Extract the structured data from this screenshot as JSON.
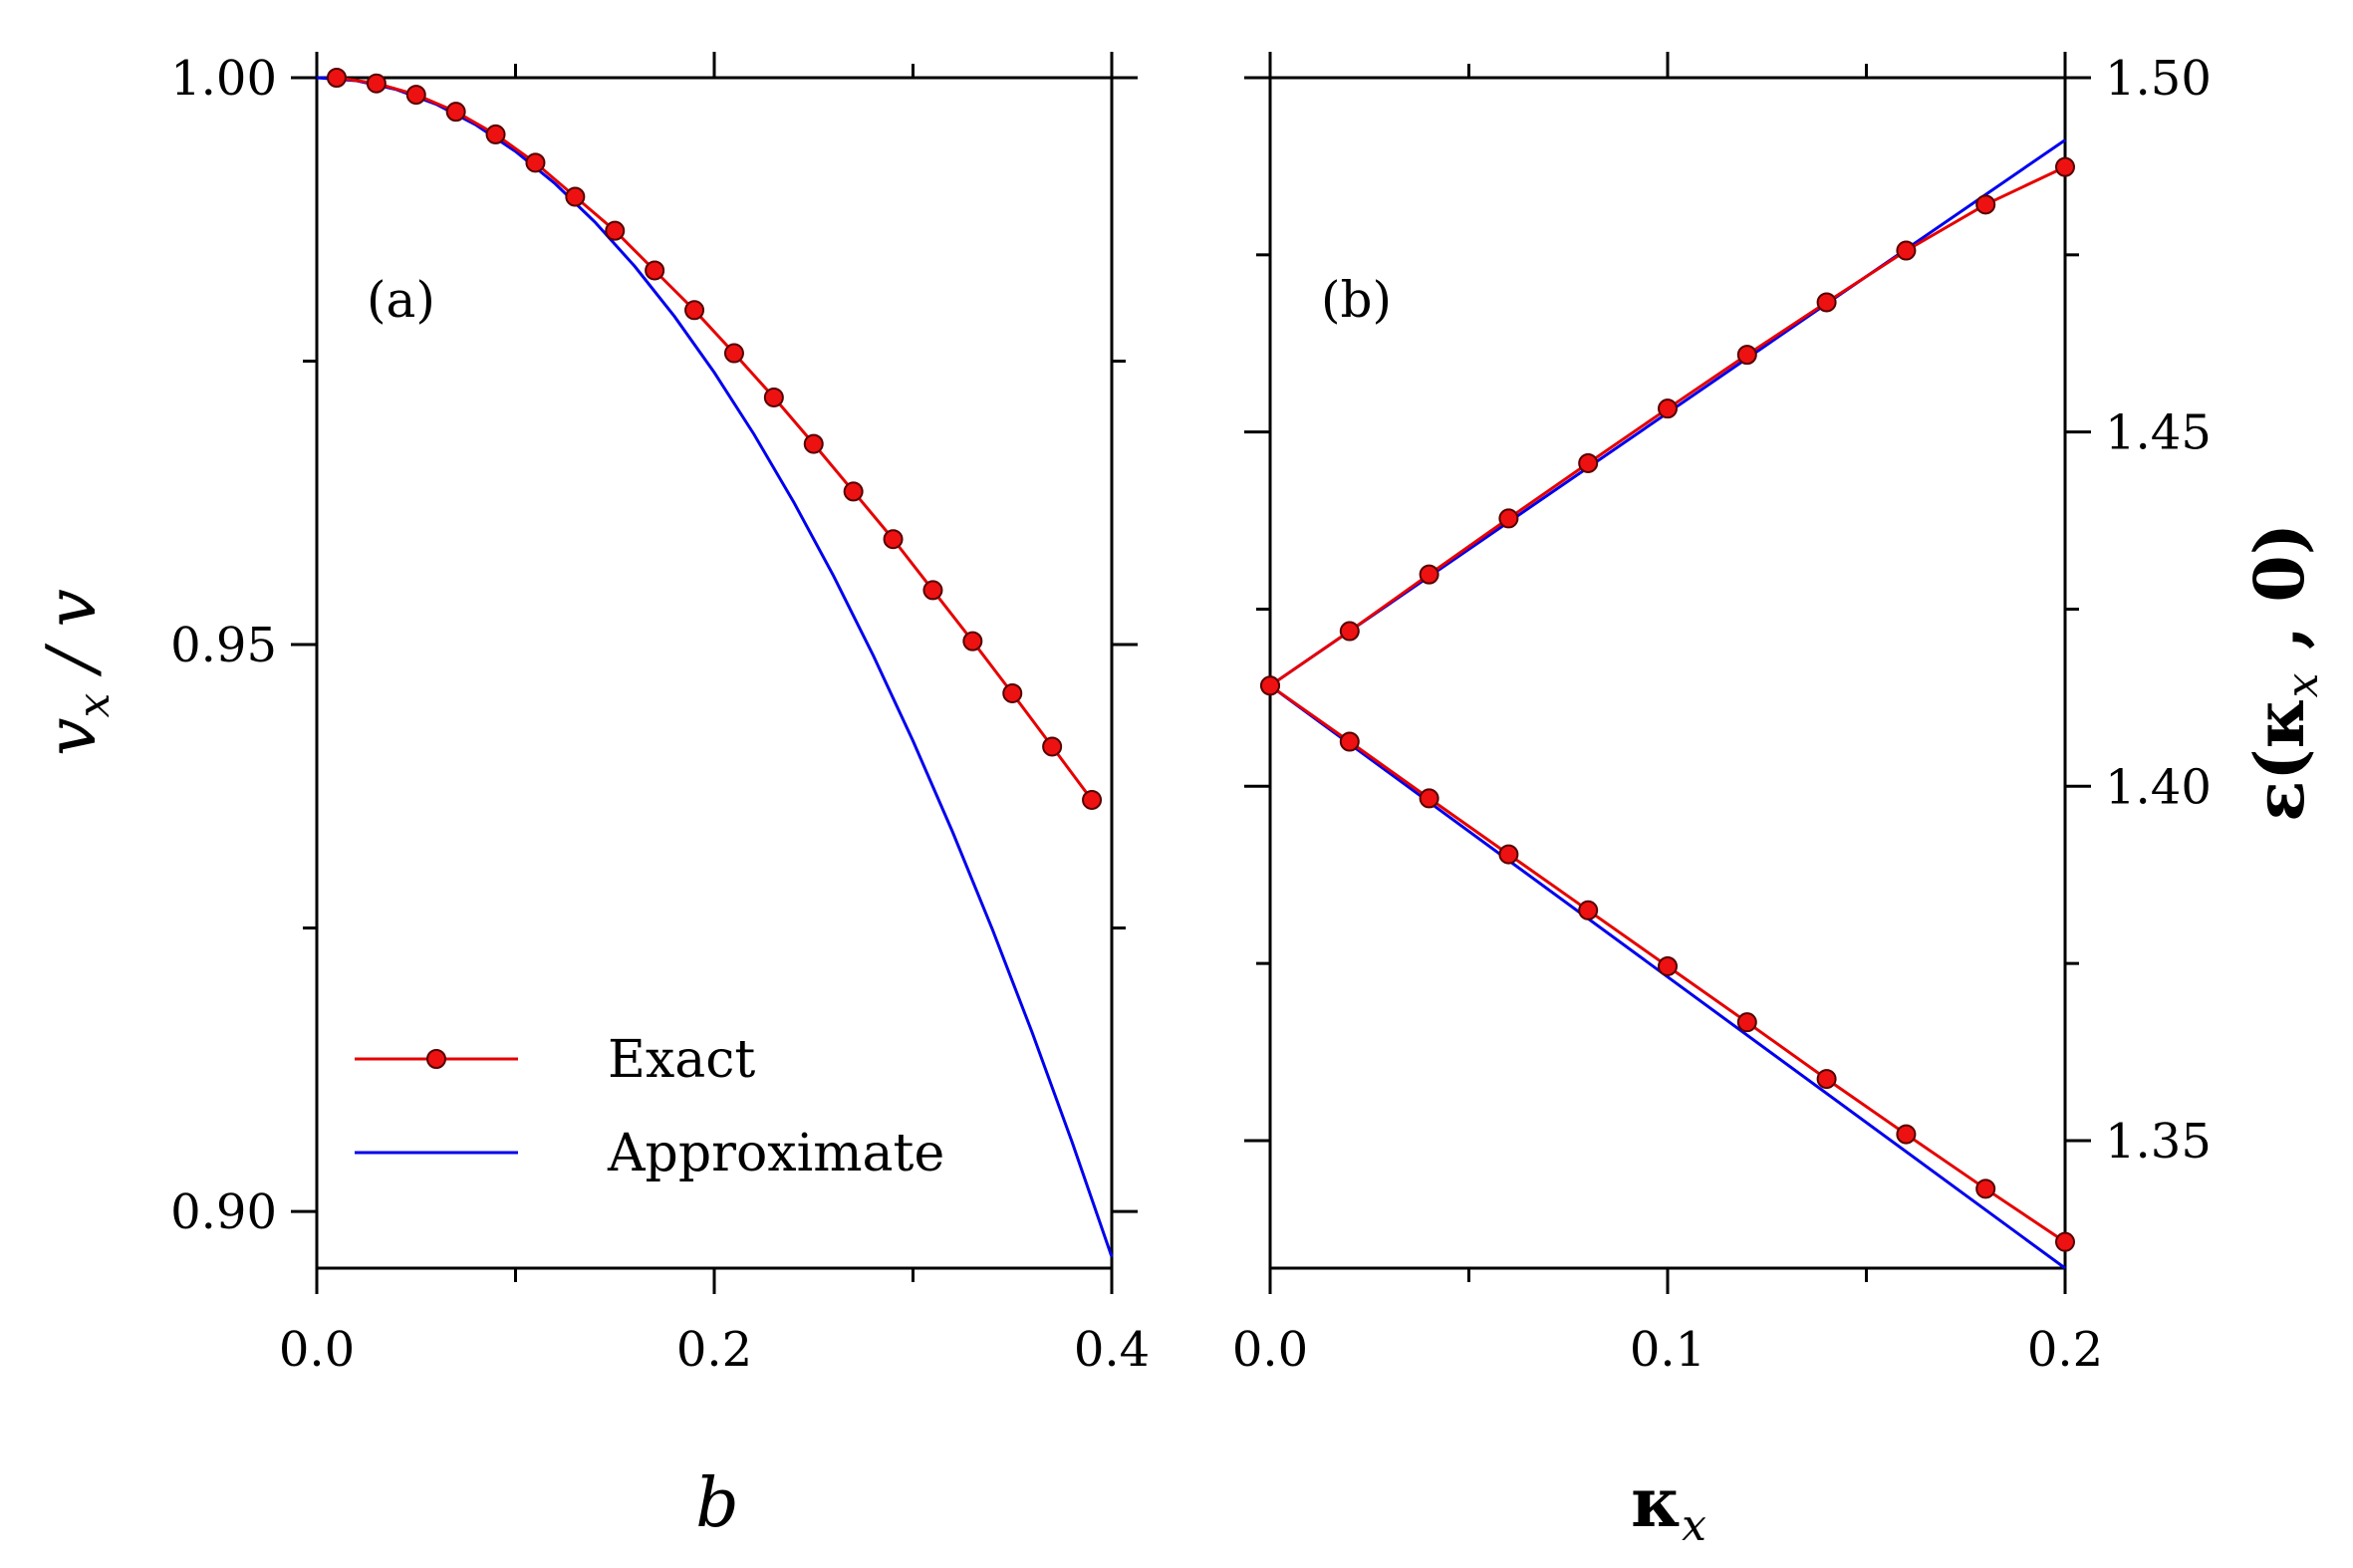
{
  "colors": {
    "exact": "#e60000",
    "approximate": "#0000ee",
    "marker_fill": "#ee1111",
    "marker_stroke": "#550000"
  },
  "chart_data": [
    {
      "type": "line",
      "panel_label": "(a)",
      "xlabel": "b",
      "ylabel": "v_x / v",
      "xlim": [
        0.0,
        0.4
      ],
      "ylim": [
        0.895,
        1.0
      ],
      "xticks": [
        "0.0",
        "0.2",
        "0.4"
      ],
      "yticks": [
        "0.90",
        "0.95",
        "1.00"
      ],
      "legend": {
        "placement": "lower-left",
        "entries": [
          "Exact",
          "Approximate"
        ]
      },
      "series": [
        {
          "name": "Exact",
          "style": "line-with-markers",
          "x": [
            0.01,
            0.03,
            0.05,
            0.07,
            0.09,
            0.11,
            0.13,
            0.15,
            0.17,
            0.19,
            0.21,
            0.23,
            0.25,
            0.27,
            0.29,
            0.31,
            0.33,
            0.35,
            0.37,
            0.39
          ],
          "y": [
            1.0,
            0.9995,
            0.9985,
            0.997,
            0.995,
            0.9925,
            0.9895,
            0.9865,
            0.983,
            0.9795,
            0.9757,
            0.9718,
            0.9677,
            0.9635,
            0.9593,
            0.9548,
            0.9503,
            0.9457,
            0.941,
            0.9363
          ]
        },
        {
          "name": "Approximate",
          "style": "line",
          "x": [
            0.0,
            0.02,
            0.04,
            0.06,
            0.08,
            0.1,
            0.12,
            0.14,
            0.16,
            0.18,
            0.2,
            0.22,
            0.24,
            0.26,
            0.28,
            0.3,
            0.32,
            0.34,
            0.36,
            0.38,
            0.4
          ],
          "y": [
            1.0,
            0.99974,
            0.99896,
            0.99766,
            0.99584,
            0.9935,
            0.99064,
            0.98726,
            0.98336,
            0.97894,
            0.974,
            0.96854,
            0.96256,
            0.95606,
            0.94904,
            0.9415,
            0.93344,
            0.92486,
            0.91576,
            0.90614,
            0.896
          ]
        }
      ]
    },
    {
      "type": "line",
      "panel_label": "(b)",
      "xlabel": "κ_x",
      "ylabel": "ε(κ_x , 0)",
      "xlim": [
        0.0,
        0.2
      ],
      "ylim": [
        1.332,
        1.5
      ],
      "xticks": [
        "0.0",
        "0.1",
        "0.2"
      ],
      "yticks": [
        "1.35",
        "1.40",
        "1.45",
        "1.50"
      ],
      "series": [
        {
          "name": "Exact upper",
          "style": "line-with-markers",
          "x": [
            0.0,
            0.02,
            0.04,
            0.06,
            0.08,
            0.1,
            0.12,
            0.14,
            0.16,
            0.18,
            0.2
          ],
          "y": [
            1.4142,
            1.4219,
            1.4299,
            1.4378,
            1.4456,
            1.4533,
            1.4609,
            1.4683,
            1.4756,
            1.4821,
            1.4874
          ]
        },
        {
          "name": "Exact lower",
          "style": "line-with-markers",
          "x": [
            0.0,
            0.02,
            0.04,
            0.06,
            0.08,
            0.1,
            0.12,
            0.14,
            0.16,
            0.18,
            0.2
          ],
          "y": [
            1.4142,
            1.4063,
            1.3983,
            1.3904,
            1.3825,
            1.3746,
            1.3667,
            1.3587,
            1.3509,
            1.3432,
            1.3357
          ]
        },
        {
          "name": "Approximate upper",
          "style": "line",
          "x": [
            0.0,
            0.2
          ],
          "y": [
            1.4142,
            1.4912
          ]
        },
        {
          "name": "Approximate lower",
          "style": "line",
          "x": [
            0.0,
            0.2
          ],
          "y": [
            1.4142,
            1.332
          ]
        }
      ]
    }
  ]
}
